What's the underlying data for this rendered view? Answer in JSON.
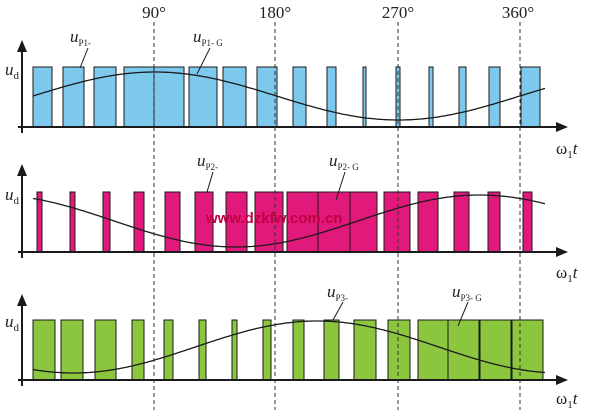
{
  "angle_labels": [
    "90°",
    "180°",
    "270°",
    "360°"
  ],
  "axis": {
    "y_label": "u",
    "y_sub": "d",
    "x_label": "ω",
    "x_sub": "1",
    "x_var": "t"
  },
  "watermark": "www.dzkfw.com.cn",
  "colors": {
    "p1": "#7dc9ee",
    "p2": "#e0197a",
    "p3": "#8cc63f",
    "stroke": "#1a1a1a",
    "dash": "#333333"
  },
  "panels": [
    {
      "id": "p1",
      "pulse_label": {
        "u": "u",
        "sub": "P1-"
      },
      "ref_label": {
        "u": "u",
        "sub": "P1- G"
      },
      "ref_phase_deg": 0,
      "pulses": [
        [
          33,
          52
        ],
        [
          63,
          84
        ],
        [
          94,
          116
        ],
        [
          124,
          154
        ],
        [
          154,
          184
        ],
        [
          189,
          217
        ],
        [
          223,
          246
        ],
        [
          257,
          277
        ],
        [
          293,
          306
        ],
        [
          327,
          336
        ],
        [
          363,
          366
        ],
        [
          396,
          400
        ],
        [
          429,
          433
        ],
        [
          459,
          466
        ],
        [
          489,
          500
        ],
        [
          521,
          540
        ]
      ]
    },
    {
      "id": "p2",
      "pulse_label": {
        "u": "u",
        "sub": "P2-"
      },
      "ref_label": {
        "u": "u",
        "sub": "P2- G"
      },
      "ref_phase_deg": -120,
      "pulses": [
        [
          37,
          42
        ],
        [
          70,
          75
        ],
        [
          103,
          110
        ],
        [
          134,
          144
        ],
        [
          165,
          180
        ],
        [
          195,
          213
        ],
        [
          226,
          247
        ],
        [
          255,
          283
        ],
        [
          287,
          319
        ],
        [
          318,
          350
        ],
        [
          350,
          377
        ],
        [
          384,
          410
        ],
        [
          418,
          438
        ],
        [
          454,
          469
        ],
        [
          488,
          500
        ],
        [
          523,
          532
        ]
      ]
    },
    {
      "id": "p3",
      "pulse_label": {
        "u": "u",
        "sub": "P3-"
      },
      "ref_label": {
        "u": "u",
        "sub": "P3- G"
      },
      "ref_phase_deg": 120,
      "pulses": [
        [
          33,
          55
        ],
        [
          61,
          83
        ],
        [
          95,
          116
        ],
        [
          132,
          144
        ],
        [
          164,
          173
        ],
        [
          199,
          206
        ],
        [
          232,
          237
        ],
        [
          263,
          271
        ],
        [
          293,
          304
        ],
        [
          324,
          339
        ],
        [
          354,
          376
        ],
        [
          388,
          410
        ],
        [
          418,
          448
        ],
        [
          448,
          479
        ],
        [
          480,
          511
        ],
        [
          512,
          543
        ]
      ]
    }
  ]
}
